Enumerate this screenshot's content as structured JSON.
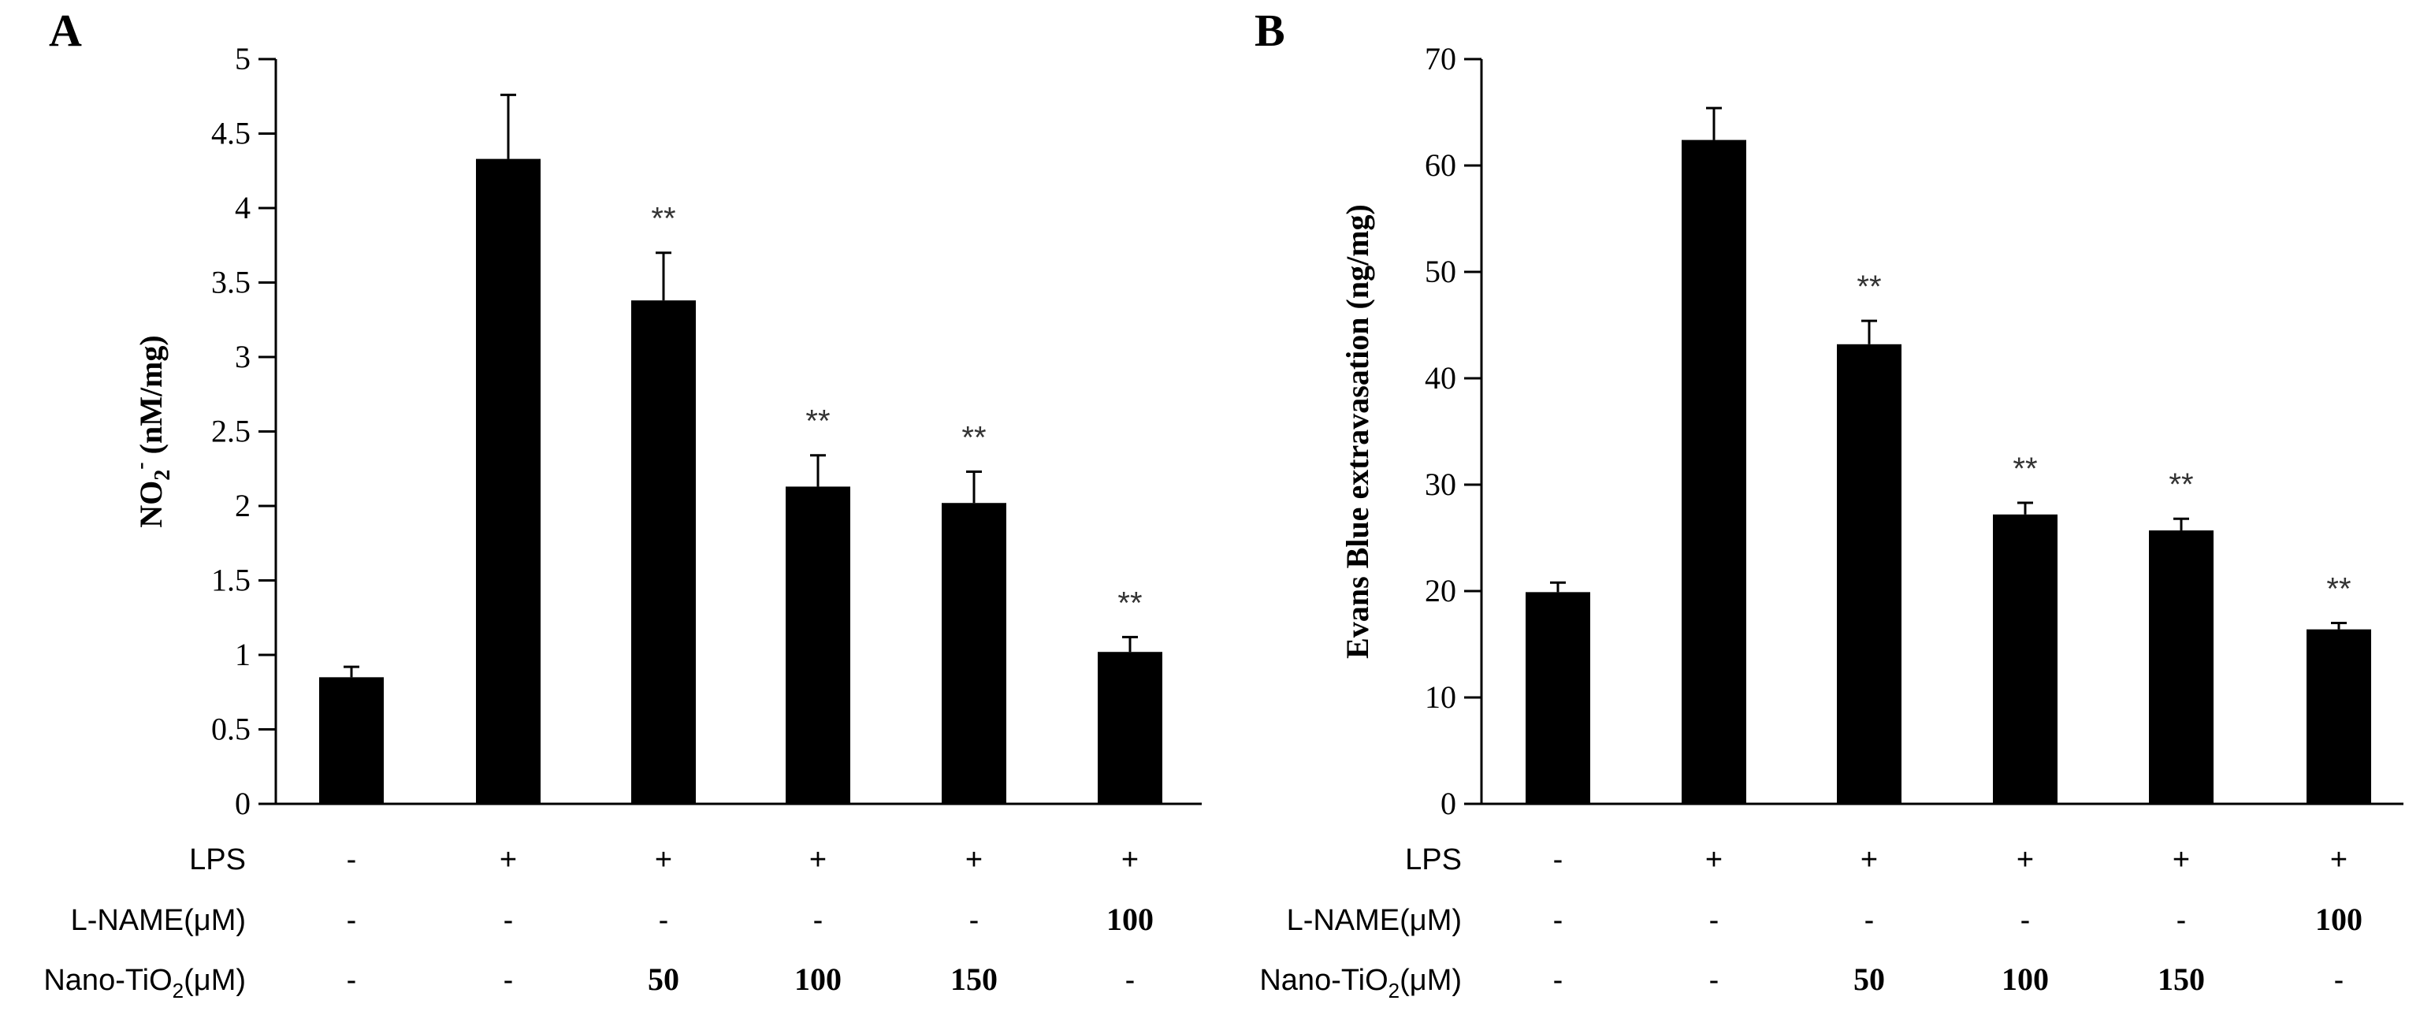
{
  "chart_data": [
    {
      "panel": "A",
      "type": "bar",
      "ylabel_main": "NO",
      "ylabel_sub": "2",
      "ylabel_sup": "-",
      "ylabel_unit": " (nM/mg)",
      "ylim": [
        0,
        5
      ],
      "ytick_labels": [
        "0",
        "0.5",
        "1",
        "1.5",
        "2",
        "2.5",
        "3",
        "3.5",
        "4",
        "4.5",
        "5"
      ],
      "values": [
        0.85,
        4.33,
        3.38,
        2.13,
        2.02,
        1.02
      ],
      "errors": [
        0.07,
        0.43,
        0.32,
        0.21,
        0.21,
        0.1
      ],
      "significance": [
        "",
        "",
        "**",
        "**",
        "**",
        "**"
      ],
      "bar_color": "#000000",
      "treatment_rows": [
        {
          "label": "LPS",
          "cells": [
            "-",
            "+",
            "+",
            "+",
            "+",
            "+"
          ]
        },
        {
          "label": "L-NAME(μM)",
          "cells": [
            "-",
            "-",
            "-",
            "-",
            "-",
            "100"
          ]
        },
        {
          "label_main": "Nano-TiO",
          "label_sub": "2",
          "label_tail": "(μM)",
          "cells": [
            "-",
            "-",
            "50",
            "100",
            "150",
            "-"
          ]
        }
      ]
    },
    {
      "panel": "B",
      "type": "bar",
      "ylabel": "Evans Blue extravasation (ng/mg)",
      "ylim": [
        0,
        70
      ],
      "ytick_labels": [
        "0",
        "10",
        "20",
        "30",
        "40",
        "50",
        "60",
        "70"
      ],
      "values": [
        19.9,
        62.4,
        43.2,
        27.2,
        25.7,
        16.4
      ],
      "errors": [
        0.9,
        3.0,
        2.2,
        1.1,
        1.1,
        0.6
      ],
      "significance": [
        "",
        "",
        "**",
        "**",
        "**",
        "**"
      ],
      "bar_color": "#000000",
      "treatment_rows": [
        {
          "label": "LPS",
          "cells": [
            "-",
            "+",
            "+",
            "+",
            "+",
            "+"
          ]
        },
        {
          "label": "L-NAME(μM)",
          "cells": [
            "-",
            "-",
            "-",
            "-",
            "-",
            "100"
          ]
        },
        {
          "label_main": "Nano-TiO",
          "label_sub": "2",
          "label_tail": "(μM)",
          "cells": [
            "-",
            "-",
            "50",
            "100",
            "150",
            "-"
          ]
        }
      ]
    }
  ]
}
